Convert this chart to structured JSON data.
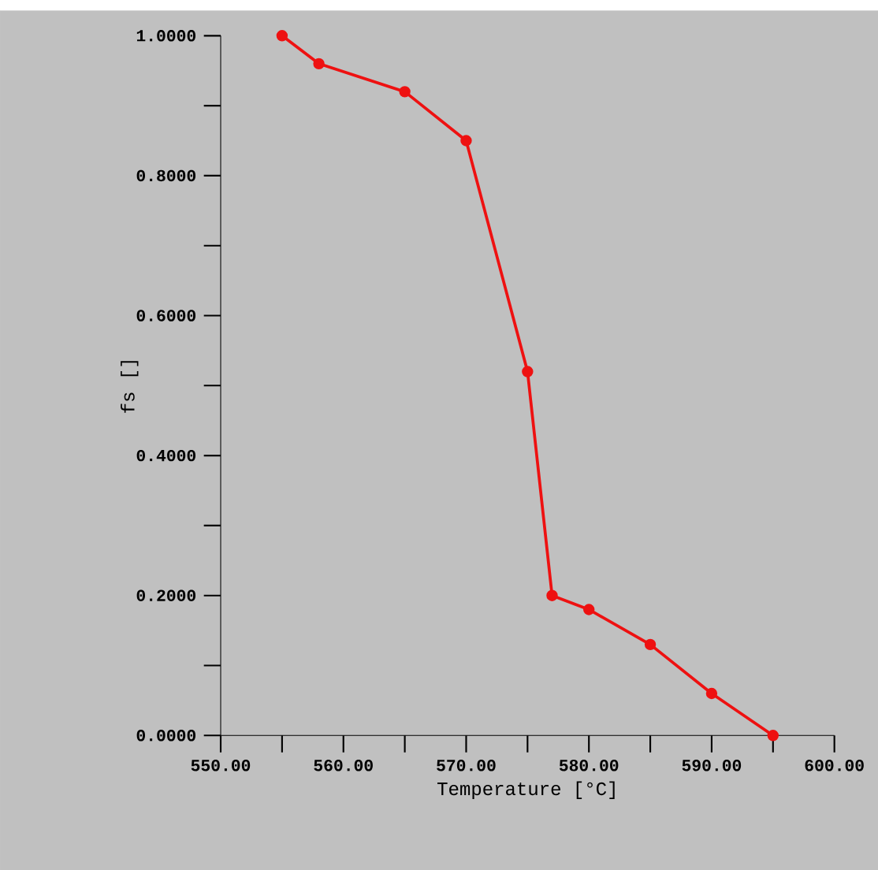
{
  "chart_data": {
    "type": "line",
    "xlabel": "Temperature [°C]",
    "ylabel": "fs []",
    "x": [
      555,
      558,
      565,
      570,
      575,
      577,
      580,
      585,
      590,
      595
    ],
    "series": [
      {
        "color": "#ee1111",
        "values": [
          1.0,
          0.96,
          0.92,
          0.85,
          0.52,
          0.2,
          0.18,
          0.13,
          0.06,
          0.0
        ]
      }
    ],
    "xlim": [
      550,
      600
    ],
    "ylim": [
      0,
      1
    ],
    "xticks": [
      {
        "value": 550,
        "label": "550.00"
      },
      {
        "value": 555,
        "label": null
      },
      {
        "value": 560,
        "label": "560.00"
      },
      {
        "value": 565,
        "label": null
      },
      {
        "value": 570,
        "label": "570.00"
      },
      {
        "value": 575,
        "label": null
      },
      {
        "value": 580,
        "label": "580.00"
      },
      {
        "value": 585,
        "label": null
      },
      {
        "value": 590,
        "label": "590.00"
      },
      {
        "value": 595,
        "label": null
      },
      {
        "value": 600,
        "label": "600.00"
      }
    ],
    "yticks": [
      {
        "value": 0,
        "label": "0.0000"
      },
      {
        "value": 0.1,
        "label": null
      },
      {
        "value": 0.2,
        "label": "0.2000"
      },
      {
        "value": 0.3,
        "label": null
      },
      {
        "value": 0.4,
        "label": "0.4000"
      },
      {
        "value": 0.5,
        "label": null
      },
      {
        "value": 0.6,
        "label": "0.6000"
      },
      {
        "value": 0.7,
        "label": null
      },
      {
        "value": 0.8,
        "label": "0.8000"
      },
      {
        "value": 0.9,
        "label": null
      },
      {
        "value": 1,
        "label": "1.0000"
      }
    ],
    "marker": "circle",
    "line_style": "solid"
  }
}
